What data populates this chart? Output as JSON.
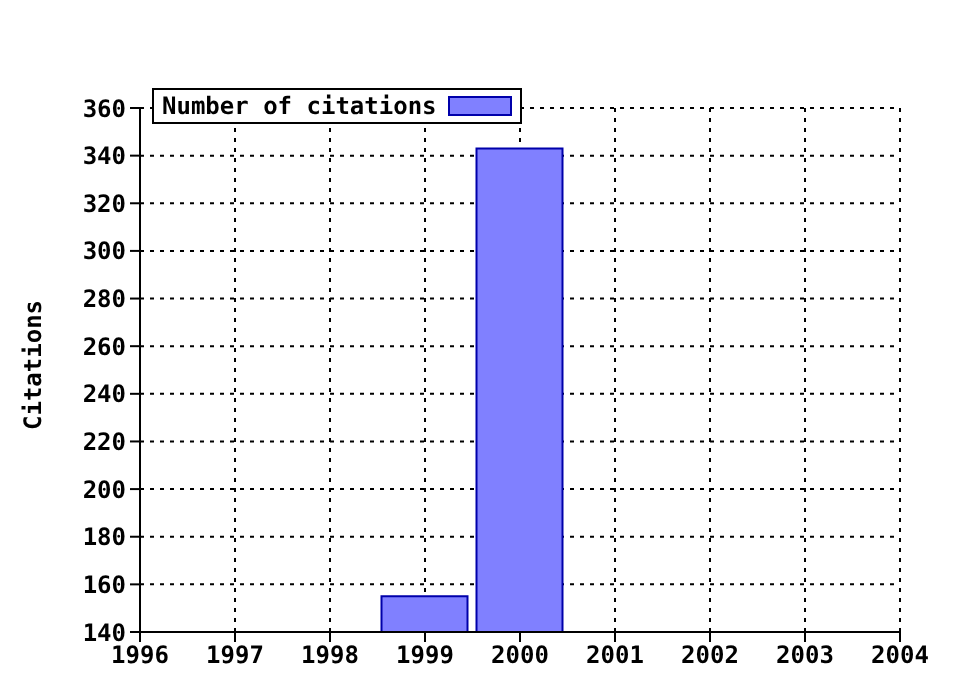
{
  "chart_data": {
    "type": "bar",
    "ylabel": "Citations",
    "x": [
      1999,
      2000
    ],
    "series": [
      {
        "name": "Number of citations",
        "color": "#8080ff",
        "values": [
          155,
          343
        ]
      }
    ],
    "xlim": [
      1996,
      2004
    ],
    "xticks": [
      1996,
      1997,
      1998,
      1999,
      2000,
      2001,
      2002,
      2003,
      2004
    ],
    "ylim": [
      140,
      360
    ],
    "yticks": [
      140,
      160,
      180,
      200,
      220,
      240,
      260,
      280,
      300,
      320,
      340,
      360
    ],
    "grid": true,
    "legend": "top left"
  }
}
